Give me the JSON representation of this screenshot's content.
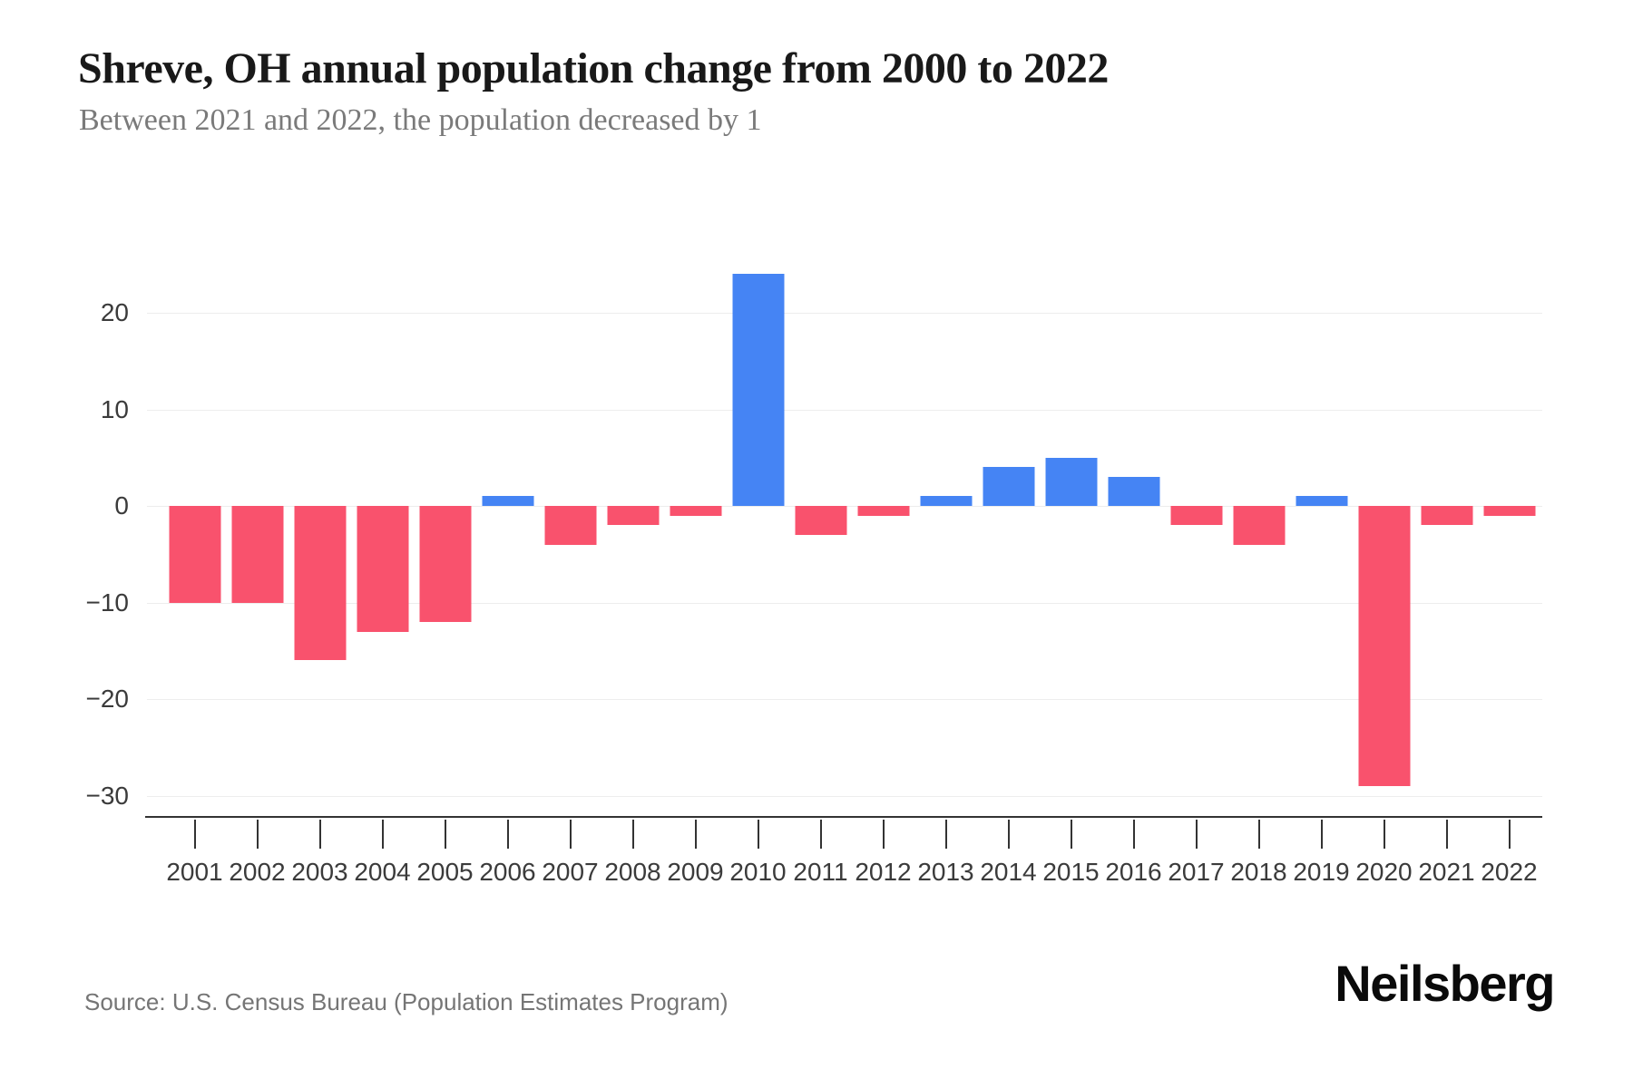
{
  "header": {
    "title": "Shreve, OH annual population change from 2000 to 2022",
    "subtitle": "Between 2021 and 2022, the population decreased by 1"
  },
  "footer": {
    "source": "Source: U.S. Census Bureau (Population Estimates Program)",
    "brand": "Neilsberg"
  },
  "chart_data": {
    "type": "bar",
    "title": "Shreve, OH annual population change from 2000 to 2022",
    "categories": [
      "2001",
      "2002",
      "2003",
      "2004",
      "2005",
      "2006",
      "2007",
      "2008",
      "2009",
      "2010",
      "2011",
      "2012",
      "2013",
      "2014",
      "2015",
      "2016",
      "2017",
      "2018",
      "2019",
      "2020",
      "2021",
      "2022"
    ],
    "values": [
      -10,
      -10,
      -16,
      -13,
      -12,
      1,
      -4,
      -2,
      -1,
      24,
      -3,
      -1,
      1,
      4,
      5,
      3,
      -2,
      -4,
      1,
      -29,
      -2,
      -1
    ],
    "xlabel": "",
    "ylabel": "",
    "y_ticks": [
      20,
      10,
      0,
      -10,
      -20,
      -30
    ],
    "ylim": [
      -32,
      26
    ],
    "grid": true,
    "legend_position": "none",
    "colors": {
      "positive_bar": "#4584f4",
      "negative_bar": "#f9526d"
    },
    "styles": {
      "grid_color": "#ededed",
      "axis_color": "#333333",
      "tick_label_color": "#3b3b3b"
    }
  }
}
